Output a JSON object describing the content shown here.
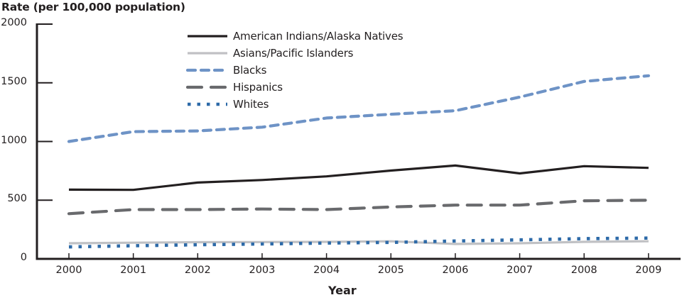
{
  "chart_data": {
    "type": "line",
    "title": "",
    "ylabel": "Rate (per 100,000 population)",
    "xlabel": "Year",
    "ylim": [
      0,
      2000
    ],
    "yticks": [
      0,
      500,
      1000,
      1500,
      2000
    ],
    "ytick_labels": [
      "0",
      "500",
      "1000",
      "1500",
      "2000"
    ],
    "grid": false,
    "legend_position": "top-center",
    "x": [
      "2000",
      "2001",
      "2002",
      "2003",
      "2004",
      "2005",
      "2006",
      "2007",
      "2008",
      "2009"
    ],
    "series": [
      {
        "name": "American Indians/Alaska Natives",
        "style": "solid",
        "color": "#231f20",
        "values": [
          590,
          588,
          650,
          672,
          703,
          752,
          795,
          728,
          790,
          775
        ]
      },
      {
        "name": "Asians/Pacific Islanders",
        "style": "solid",
        "color": "#c0c1c4",
        "values": [
          133,
          138,
          142,
          143,
          145,
          150,
          127,
          133,
          145,
          150
        ]
      },
      {
        "name": "Blacks",
        "style": "dashed",
        "color": "#6e93c6",
        "values": [
          1000,
          1084,
          1090,
          1122,
          1200,
          1232,
          1262,
          1378,
          1512,
          1560
        ]
      },
      {
        "name": "Hispanics",
        "style": "long-dashed",
        "color": "#696a6d",
        "values": [
          385,
          420,
          420,
          425,
          420,
          442,
          458,
          458,
          495,
          500
        ]
      },
      {
        "name": "Whites",
        "style": "dotted",
        "color": "#2d6aa8",
        "values": [
          102,
          112,
          120,
          127,
          135,
          140,
          152,
          162,
          172,
          177
        ]
      }
    ]
  }
}
